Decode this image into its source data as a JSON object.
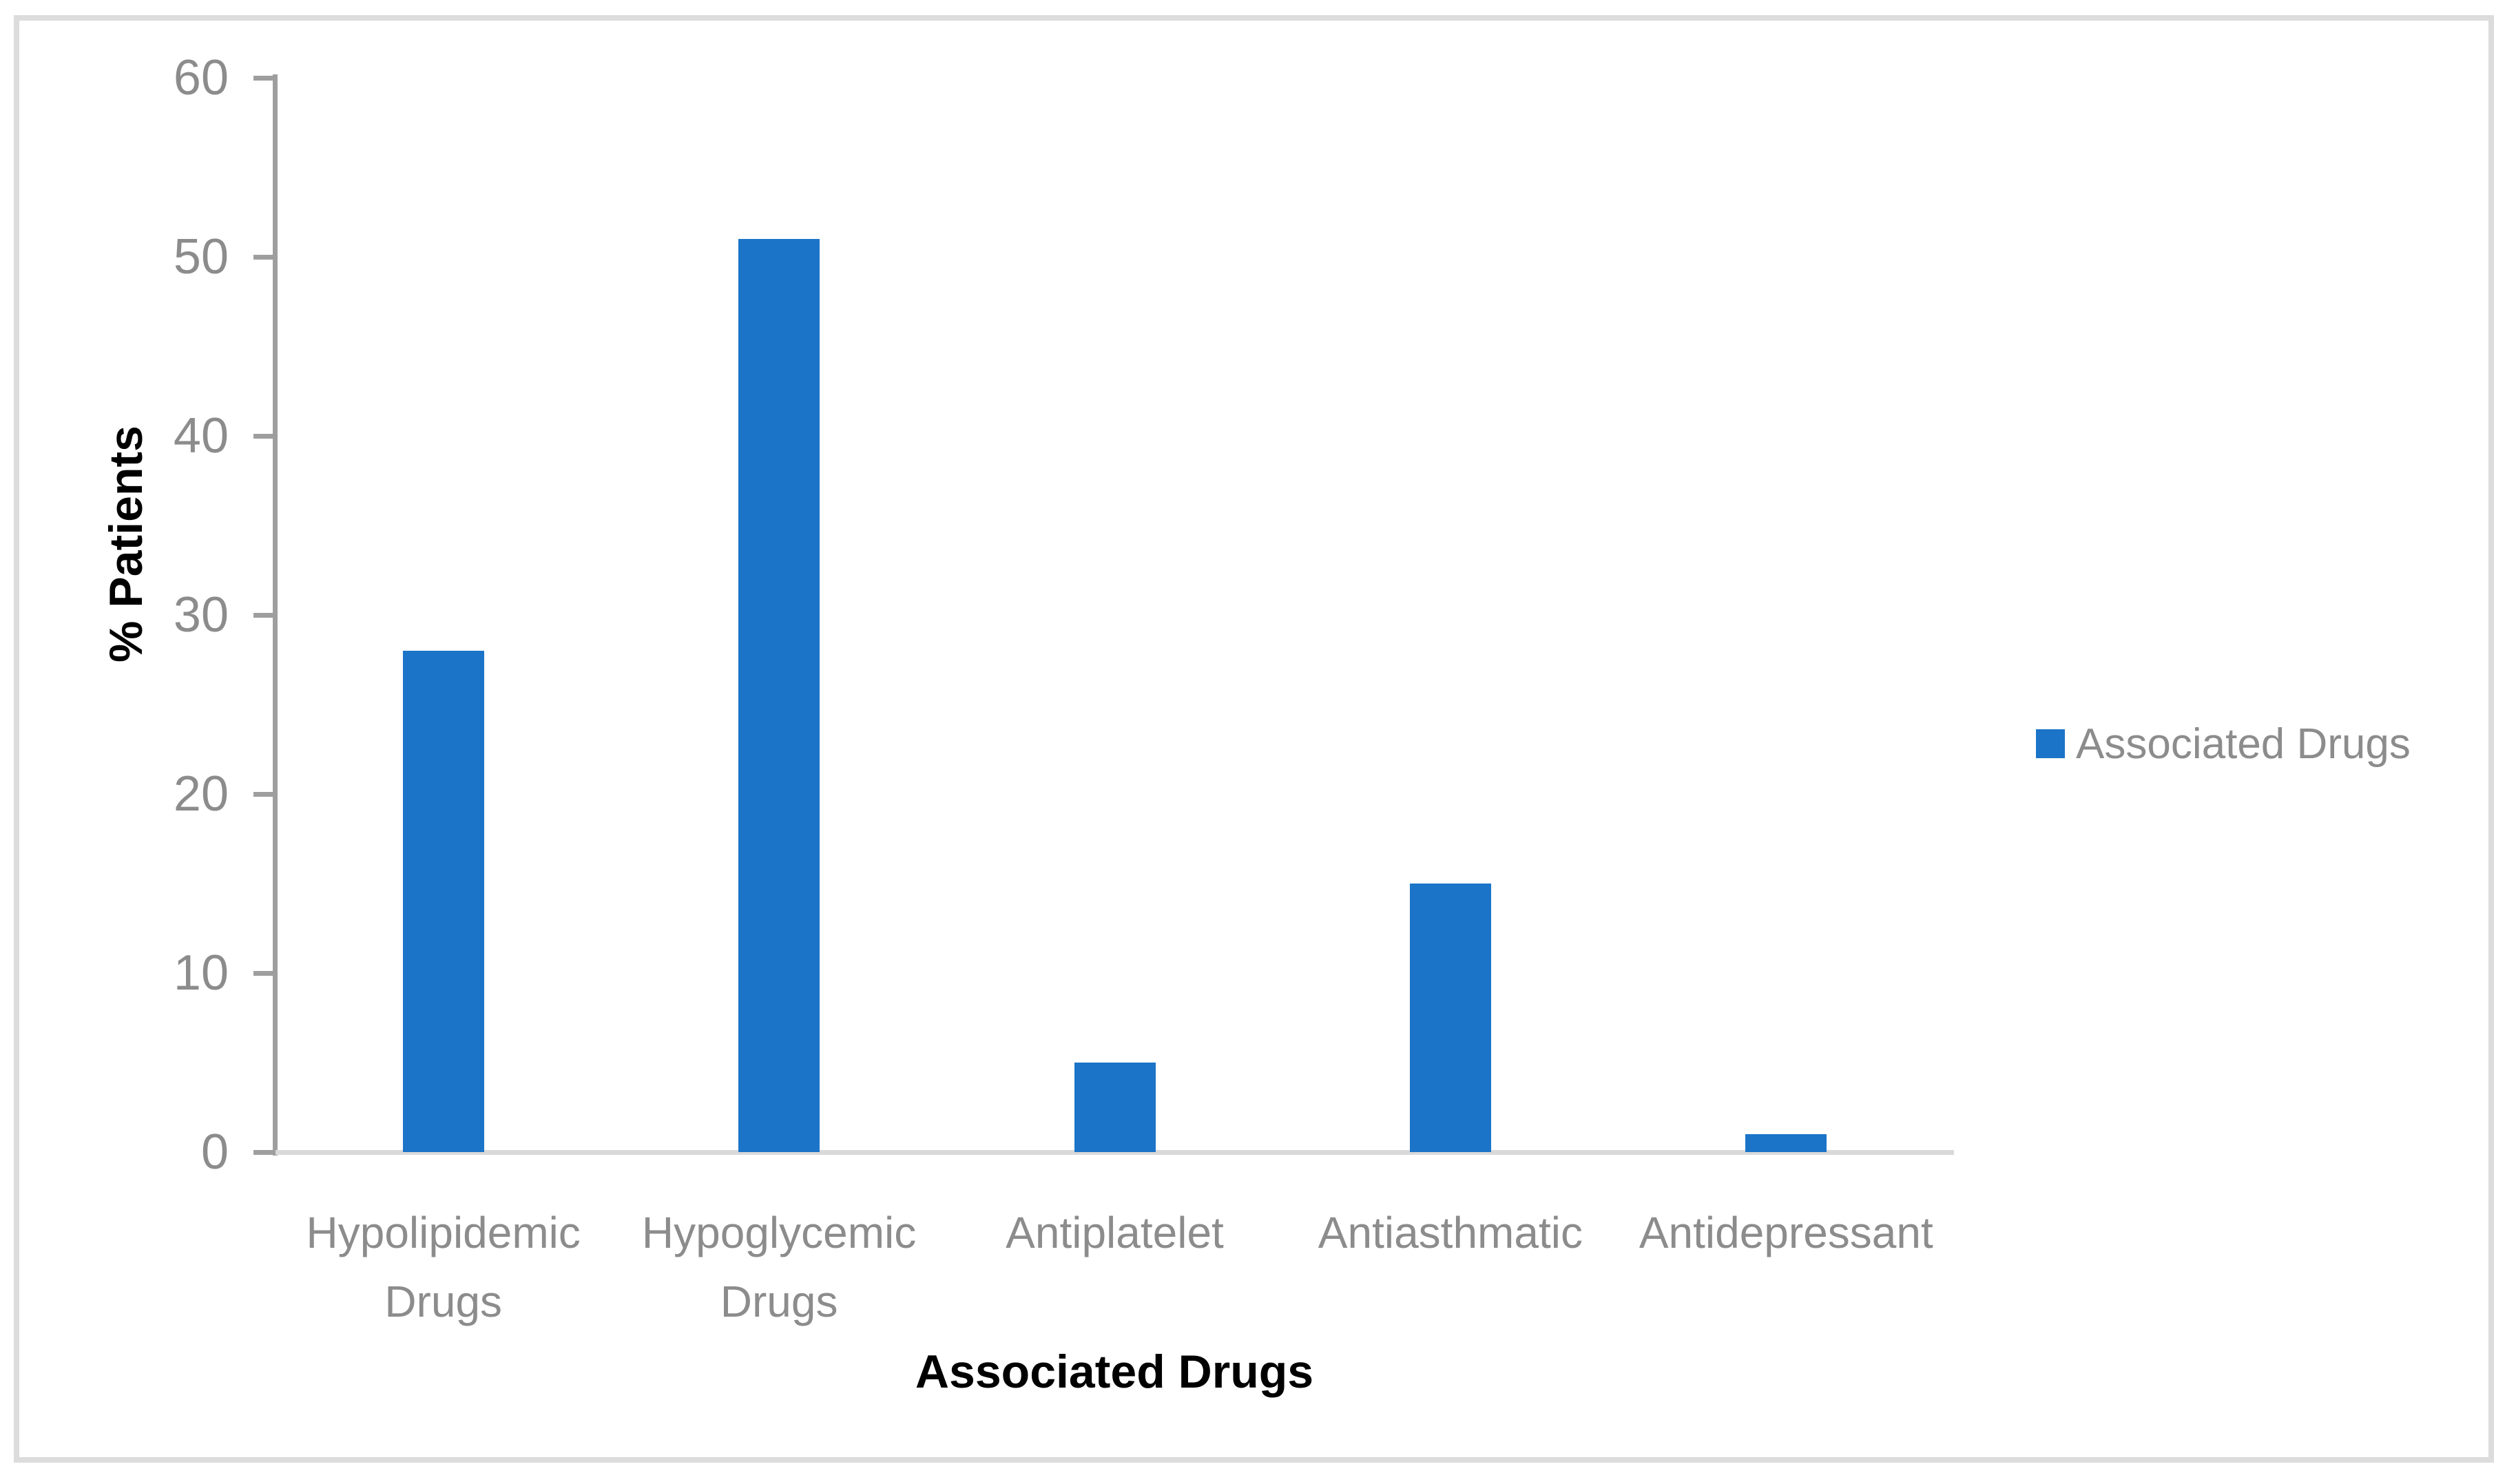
{
  "figure": {
    "ylabel": "% Patients",
    "xlabel": "Associated Drugs",
    "legend_label": "Associated Drugs"
  },
  "chart_data": {
    "type": "bar",
    "title": "",
    "categories": [
      "Hypolipidemic Drugs",
      "Hypoglycemic Drugs",
      "Antiplatelet",
      "Antiasthmatic",
      "Antidepressant"
    ],
    "series": [
      {
        "name": "Associated Drugs",
        "values": [
          28,
          51,
          5,
          15,
          1
        ]
      }
    ],
    "xlabel": "Associated Drugs",
    "ylabel": "% Patients",
    "ylim": [
      0,
      60
    ],
    "ytick_step": 10,
    "yticks": [
      0,
      10,
      20,
      30,
      40,
      50,
      60
    ],
    "grid": false,
    "legend_position": "right",
    "bar_color": "#1B74C8",
    "category_label_lines": [
      [
        "Hypolipidemic",
        "Drugs"
      ],
      [
        "Hypoglycemic",
        "Drugs"
      ],
      [
        "Antiplatelet"
      ],
      [
        "Antiasthmatic"
      ],
      [
        "Antidepressant"
      ]
    ],
    "colors": {
      "axis_line": "#9E9E9E",
      "baseline": "#D9D9D9",
      "tick_text": "#8C8C8C",
      "category_text": "#8C8C8C",
      "legend_text": "#8C8C8C",
      "frame_border": "#DCDCDC",
      "title_text": "#000000"
    }
  }
}
